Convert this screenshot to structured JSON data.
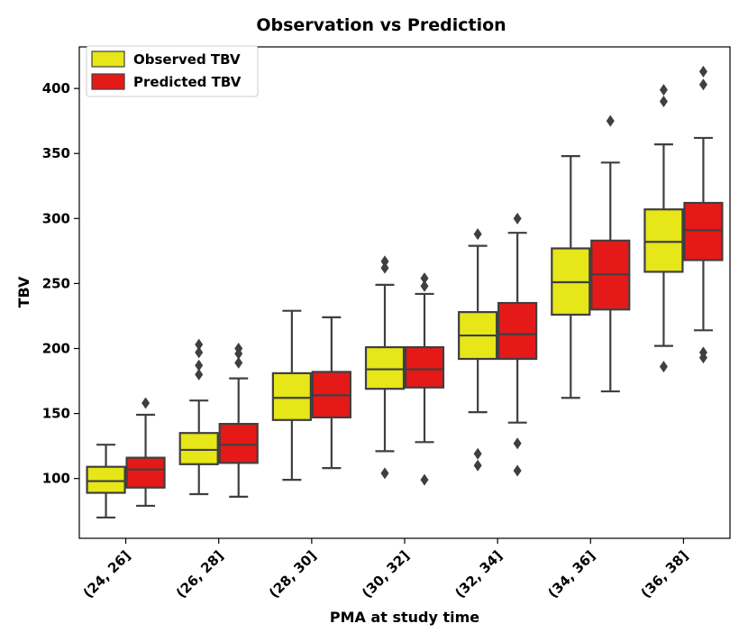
{
  "chart_data": {
    "type": "box",
    "title": "Observation vs Prediction",
    "xlabel": "PMA at study time",
    "ylabel": "TBV",
    "ylim": [
      54,
      432
    ],
    "yticks": [
      100,
      150,
      200,
      250,
      300,
      350,
      400
    ],
    "categories": [
      "(24, 26]",
      "(26, 28]",
      "(28, 30]",
      "(30, 32]",
      "(32, 34]",
      "(34, 36]",
      "(36, 38]"
    ],
    "legend_position": "top-left",
    "series": [
      {
        "name": "Observed TBV",
        "color": "#e6e619",
        "boxes": [
          {
            "whislo": 70,
            "q1": 89,
            "med": 98,
            "q3": 109,
            "whishi": 126,
            "fliers": []
          },
          {
            "whislo": 88,
            "q1": 111,
            "med": 122,
            "q3": 135,
            "whishi": 160,
            "fliers": [
              180,
              187,
              197,
              203
            ]
          },
          {
            "whislo": 99,
            "q1": 145,
            "med": 162,
            "q3": 181,
            "whishi": 229,
            "fliers": []
          },
          {
            "whislo": 121,
            "q1": 169,
            "med": 184,
            "q3": 201,
            "whishi": 249,
            "fliers": [
              104,
              262,
              267
            ]
          },
          {
            "whislo": 151,
            "q1": 192,
            "med": 210,
            "q3": 228,
            "whishi": 279,
            "fliers": [
              110,
              119,
              288
            ]
          },
          {
            "whislo": 162,
            "q1": 226,
            "med": 251,
            "q3": 277,
            "whishi": 348,
            "fliers": []
          },
          {
            "whislo": 202,
            "q1": 259,
            "med": 282,
            "q3": 307,
            "whishi": 357,
            "fliers": [
              186,
              390,
              399
            ]
          }
        ]
      },
      {
        "name": "Predicted TBV",
        "color": "#e61919",
        "boxes": [
          {
            "whislo": 79,
            "q1": 93,
            "med": 107,
            "q3": 116,
            "whishi": 149,
            "fliers": [
              158
            ]
          },
          {
            "whislo": 86,
            "q1": 112,
            "med": 126,
            "q3": 142,
            "whishi": 177,
            "fliers": [
              189,
              196,
              200
            ]
          },
          {
            "whislo": 108,
            "q1": 147,
            "med": 164,
            "q3": 182,
            "whishi": 224,
            "fliers": []
          },
          {
            "whislo": 128,
            "q1": 170,
            "med": 184,
            "q3": 201,
            "whishi": 242,
            "fliers": [
              99,
              248,
              254
            ]
          },
          {
            "whislo": 143,
            "q1": 192,
            "med": 211,
            "q3": 235,
            "whishi": 289,
            "fliers": [
              106,
              127,
              300
            ]
          },
          {
            "whislo": 167,
            "q1": 230,
            "med": 257,
            "q3": 283,
            "whishi": 343,
            "fliers": [
              375
            ]
          },
          {
            "whislo": 214,
            "q1": 268,
            "med": 291,
            "q3": 312,
            "whishi": 362,
            "fliers": [
              193,
              197,
              403,
              413
            ]
          }
        ]
      }
    ]
  }
}
